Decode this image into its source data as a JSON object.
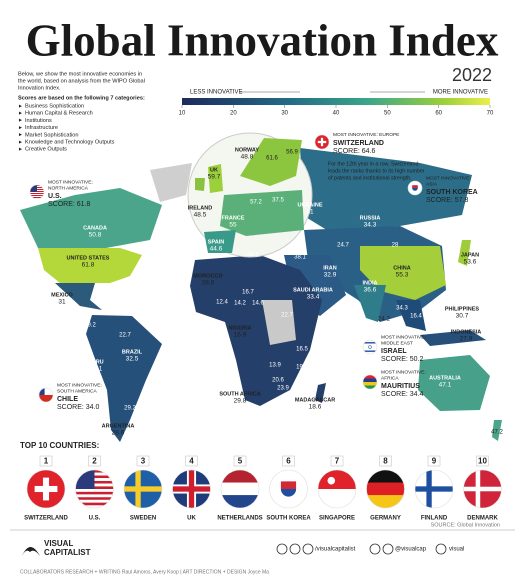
{
  "header": {
    "title": "Global Innovation Index",
    "year": "2022",
    "intro": [
      "Below, we show the most innovative economies in",
      "the world, based on analysis from the WIPO Global",
      "Innovation Index."
    ],
    "categories_intro": "Scores are based on the following 7 categories:",
    "categories": [
      "Business Sophistication",
      "Human Capital & Research",
      "Institutions",
      "Infrastructure",
      "Market Sophistication",
      "Knowledge and Technology Outputs",
      "Creative Outputs"
    ]
  },
  "legend": {
    "left_label": "LESS INNOVATIVE",
    "right_label": "MORE INNOVATIVE",
    "ticks": [
      10,
      20,
      30,
      40,
      50,
      60,
      70
    ]
  },
  "callouts": [
    {
      "lead": "MOST INNOVATIVE:",
      "region": "NORTH AMERICA",
      "country": "U.S.",
      "score": "SCORE: 61.8"
    },
    {
      "lead": "MOST INNOVATIVE:",
      "region": "EUROPE",
      "country": "SWITZERLAND",
      "score": "SCORE: 64.6",
      "note": [
        "For the 12th year in a row, Switzerland",
        "leads the ranks thanks to its high number",
        "of patents and institutional strength."
      ]
    },
    {
      "lead": "MOST INNOVATIVE:",
      "region": "ASIA",
      "country": "SOUTH KOREA",
      "score": "SCORE: 57.8"
    },
    {
      "lead": "MOST INNOVATIVE:",
      "region": "MIDDLE EAST",
      "country": "ISRAEL",
      "score": "SCORE: 50.2"
    },
    {
      "lead": "MOST INNOVATIVE:",
      "region": "AFRICA",
      "country": "MAURITIUS",
      "score": "SCORE: 34.4"
    },
    {
      "lead": "MOST INNOVATIVE:",
      "region": "SOUTH AMERICA",
      "country": "CHILE",
      "score": "SCORE: 34.0"
    }
  ],
  "map_labels": [
    {
      "name": "CANADA",
      "score": 50.8
    },
    {
      "name": "UNITED STATES",
      "score": 61.8
    },
    {
      "name": "MEXICO",
      "score": 31
    },
    {
      "name": "BRAZIL",
      "score": 32.5
    },
    {
      "name": "PERU",
      "score": 29.1
    },
    {
      "name": "ARGENTINA",
      "score": 28.6
    },
    {
      "name": "MOROCCO",
      "score": 28.8
    },
    {
      "name": "NIGERIA",
      "score": 16.9
    },
    {
      "name": "SOUTH AFRICA",
      "score": 29.8
    },
    {
      "name": "MADAGASCAR",
      "score": 18.6
    },
    {
      "name": "RUSSIA",
      "score": 34.3
    },
    {
      "name": "CHINA",
      "score": 55.3
    },
    {
      "name": "JAPAN",
      "score": 53.6
    },
    {
      "name": "INDIA",
      "score": 36.6
    },
    {
      "name": "IRAN",
      "score": 32.9
    },
    {
      "name": "SAUDI ARABIA",
      "score": 33.4
    },
    {
      "name": "PHILIPPINES",
      "score": 30.7
    },
    {
      "name": "INDONESIA",
      "score": 27.9
    },
    {
      "name": "AUSTRALIA",
      "score": 47.1
    },
    {
      "name": "NORWAY",
      "score": 48.8
    },
    {
      "name": "IRELAND",
      "score": 48.5
    },
    {
      "name": "FRANCE",
      "score": 55
    },
    {
      "name": "SPAIN",
      "score": 44.6
    },
    {
      "name": "UKRAINE",
      "score": 31
    },
    {
      "name": "UK",
      "score": 59.7
    }
  ],
  "map_values": [
    61.6,
    56.9,
    57.2,
    37.5,
    34.5,
    38.1,
    24.7,
    28,
    26.8,
    22.7,
    16.7,
    12.4,
    14.2,
    14.6,
    16.5,
    19.4,
    13.9,
    20.6,
    23.9,
    29.2,
    22.7,
    29.2,
    24.2,
    34.3,
    16.4,
    38.1,
    47.2
  ],
  "top10": {
    "title": "TOP 10 COUNTRIES:",
    "items": [
      {
        "rank": 1,
        "name": "SWITZERLAND"
      },
      {
        "rank": 2,
        "name": "U.S."
      },
      {
        "rank": 3,
        "name": "SWEDEN"
      },
      {
        "rank": 4,
        "name": "UK"
      },
      {
        "rank": 5,
        "name": "NETHERLANDS"
      },
      {
        "rank": 6,
        "name": "SOUTH KOREA"
      },
      {
        "rank": 7,
        "name": "SINGAPORE"
      },
      {
        "rank": 8,
        "name": "GERMANY"
      },
      {
        "rank": 9,
        "name": "FINLAND"
      },
      {
        "rank": 10,
        "name": "DENMARK"
      }
    ]
  },
  "footer": {
    "source": "SOURCE: Global Innovation",
    "brand_top": "VISUAL",
    "brand_bottom": "CAPITALIST",
    "social_1": "/visualcapitalist",
    "social_2": "@visualcap",
    "social_3": "visual",
    "credits": "COLLABORATORS  RESEARCH + WRITING Raul Amoros, Avery Koop  |  ART DIRECTION + DESIGN Joyce Ma"
  }
}
